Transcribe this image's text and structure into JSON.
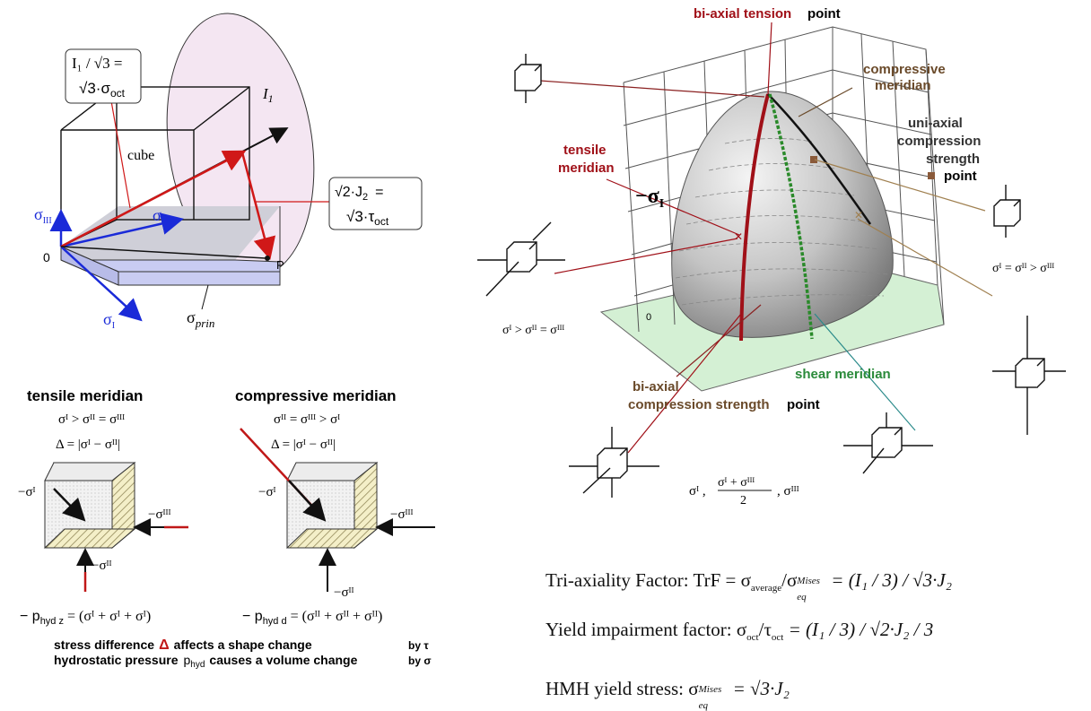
{
  "cube_diagram": {
    "label_i1_sqrt3": "I₁ / √3 =",
    "label_sqrt3_oct": "√3·σ",
    "label_oct_sub": "oct",
    "label_cube": "cube",
    "label_I1": "I",
    "label_I1_sub": "1",
    "label_sqrt2J2": "√2·J",
    "label_J2_sub": "2",
    "label_eq": "=",
    "label_sqrt3_tau": "√3·τ",
    "label_tau_sub": "oct",
    "label_sigma_III": "σ",
    "label_sigma_III_sub": "III",
    "label_sigma_II": "σ",
    "label_sigma_II_sub": "II",
    "label_sigma_I": "σ",
    "label_sigma_I_sub": "I",
    "label_origin": "0",
    "label_P": "P",
    "label_sigma_prin": "σ",
    "label_prin_sub": "prin"
  },
  "meridians": {
    "tensile_title": "tensile meridian",
    "tensile_cond": "σᴵ > σᴵᴵ = σᴵᴵᴵ",
    "tensile_delta": "Δ = |σᴵ − σᴵᴵ|",
    "tensile_minus_sI": "−σᴵ",
    "tensile_minus_sIII": "−σᴵᴵᴵ",
    "tensile_minus_sII": "−σᴵᴵ",
    "tensile_phyd": "− p",
    "tensile_phyd_sub": "hyd z",
    "tensile_phyd_eq": "= (σᴵ + σᴵ + σᴵ)",
    "compressive_title": "compressive meridian",
    "compressive_cond": "σᴵᴵ = σᴵᴵᴵ > σᴵ",
    "compressive_delta": "Δ = |σᴵ − σᴵᴵ|",
    "compressive_minus_sI": "−σᴵ",
    "compressive_minus_sIII": "−σᴵᴵᴵ",
    "compressive_minus_sII": "−σᴵᴵ",
    "compressive_phyd": "− p",
    "compressive_phyd_sub": "hyd d",
    "compressive_phyd_eq": "= (σᴵᴵ + σᴵᴵ + σᴵᴵ)",
    "note_line1_a": "stress difference",
    "note_line1_delta": "Δ",
    "note_line1_b": "affects a shape change",
    "note_line1_c": "by τ",
    "note_line2_a": "hydrostatic pressure",
    "note_line2_p": "p",
    "note_line2_psub": "hyd",
    "note_line2_b": "causes a volume change",
    "note_line2_c": "by σ"
  },
  "paraboloid": {
    "biaxial_tension": "bi-axial tension",
    "point": "point",
    "compressive_meridian_l1": "compressive",
    "compressive_meridian_l2": "meridian",
    "uniaxial_l1": "uni-axial",
    "uniaxial_l2": "compression",
    "uniaxial_l3": "strength",
    "tensile_meridian_l1": "tensile",
    "tensile_meridian_l2": "meridian",
    "minus_sigma_I": "−σ",
    "minus_sigma_I_sub": "I",
    "zero": "0",
    "shear_meridian": "shear meridian",
    "biaxial_compression_l1": "bi-axial",
    "biaxial_compression_l2": "compression strength",
    "cond_left": "σᴵ > σᴵᴵ = σᴵᴵᴵ",
    "cond_right": "σᴵ = σᴵᴵ > σᴵᴵᴵ",
    "shear_cond_a": "σᴵ ,",
    "shear_cond_num": "σᴵ + σᴵᴵᴵ",
    "shear_cond_den": "2",
    "shear_cond_b": ", σᴵᴵᴵ"
  },
  "formulas": {
    "trf_label": "Tri-axiality Factor: TrF = σ",
    "trf_sub": "average",
    "trf_mid": "/σ",
    "trf_sup": "Mises",
    "trf_eqsub": "eq",
    "trf_rhs": "= (I₁ / 3) / √3·J₂",
    "yif_label": "Yield impairment factor: σ",
    "yif_sub1": "oct",
    "yif_mid": "/τ",
    "yif_sub2": "oct",
    "yif_rhs": "= (I₁ / 3) / √2·J₂ / 3",
    "hmh_label": "HMH yield stress: σ",
    "hmh_sup": "Mises",
    "hmh_eqsub": "eq",
    "hmh_rhs": "= √3·J₂"
  }
}
